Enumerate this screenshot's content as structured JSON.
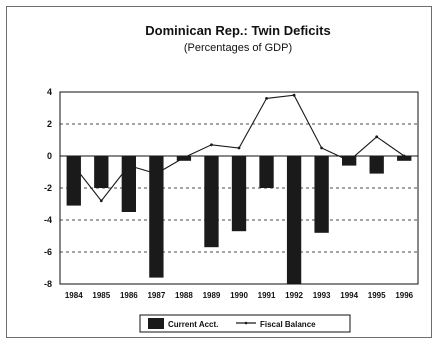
{
  "chart_data": {
    "type": "bar",
    "title": "Dominican Rep.:  Twin Deficits",
    "subtitle": "(Percentages of GDP)",
    "categories": [
      "1984",
      "1985",
      "1986",
      "1987",
      "1988",
      "1989",
      "1990",
      "1991",
      "1992",
      "1993",
      "1994",
      "1995",
      "1996"
    ],
    "series": [
      {
        "name": "Current Acct.",
        "kind": "bar",
        "values": [
          -3.1,
          -2.0,
          -3.5,
          -7.6,
          -0.3,
          -5.7,
          -4.7,
          -2.0,
          -8.0,
          -4.8,
          -0.6,
          -1.1,
          -0.3
        ],
        "color": "#1a1a1a"
      },
      {
        "name": "Fiscal Balance",
        "kind": "line",
        "values": [
          -0.6,
          -2.8,
          -0.6,
          -1.1,
          -0.1,
          0.7,
          0.5,
          3.6,
          3.8,
          0.5,
          -0.3,
          1.2,
          0.0
        ],
        "color": "#1a1a1a"
      }
    ],
    "ylim": [
      -8,
      4
    ],
    "yticks": [
      4,
      2,
      0,
      -2,
      -4,
      -6,
      -8
    ],
    "xlabel": "",
    "ylabel": "",
    "grid": "horizontal dashed",
    "legend_position": "bottom-center"
  }
}
